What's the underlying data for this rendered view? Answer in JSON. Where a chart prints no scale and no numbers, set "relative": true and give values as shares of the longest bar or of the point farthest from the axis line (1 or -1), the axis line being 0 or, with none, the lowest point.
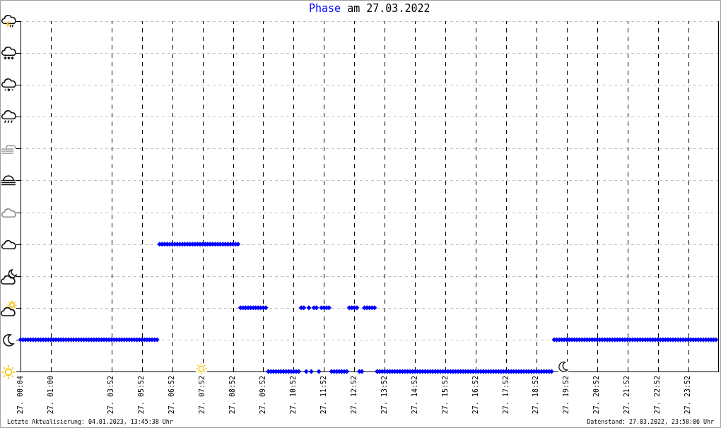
{
  "chart_data": {
    "type": "scatter",
    "title": "am 27.03.2022",
    "categories": [
      "27. 00:04",
      null,
      null,
      null,
      null,
      null,
      null,
      null,
      null,
      null,
      null,
      null,
      "27. 01:00",
      null,
      null,
      null,
      null,
      null,
      null,
      null,
      null,
      null,
      null,
      null,
      null,
      null,
      null,
      null,
      null,
      null,
      null,
      null,
      null,
      null,
      null,
      null,
      "27. 03:52",
      null,
      null,
      null,
      null,
      null,
      null,
      null,
      null,
      null,
      null,
      null,
      "27. 05:52",
      null,
      null,
      null,
      null,
      null,
      null,
      null,
      null,
      null,
      null,
      null,
      "27. 06:52",
      null,
      null,
      null,
      null,
      null,
      null,
      null,
      null,
      null,
      null,
      null,
      "27. 07:52",
      null,
      null,
      null,
      null,
      null,
      null,
      null,
      null,
      null,
      null,
      null,
      "27. 08:52",
      null,
      null,
      null,
      null,
      null,
      null,
      null,
      null,
      null,
      null,
      null,
      "27. 09:52",
      null,
      null,
      null,
      null,
      null,
      null,
      null,
      null,
      null,
      null,
      null,
      "27. 10:52",
      null,
      null,
      null,
      null,
      null,
      null,
      null,
      null,
      null,
      null,
      null,
      "27. 11:52",
      null,
      null,
      null,
      null,
      null,
      null,
      null,
      null,
      null,
      null,
      null,
      "27. 12:52",
      null,
      null,
      null,
      null,
      null,
      null,
      null,
      null,
      null,
      null,
      null,
      "27. 13:52",
      null,
      null,
      null,
      null,
      null,
      null,
      null,
      null,
      null,
      null,
      null,
      "27. 14:52",
      null,
      null,
      null,
      null,
      null,
      null,
      null,
      null,
      null,
      null,
      null,
      "27. 15:52",
      null,
      null,
      null,
      null,
      null,
      null,
      null,
      null,
      null,
      null,
      null,
      "27. 16:52",
      null,
      null,
      null,
      null,
      null,
      null,
      null,
      null,
      null,
      null,
      null,
      "27. 17:52",
      null,
      null,
      null,
      null,
      null,
      null,
      null,
      null,
      null,
      null,
      null,
      "27. 18:52",
      null,
      null,
      null,
      null,
      null,
      null,
      null,
      null,
      null,
      null,
      null,
      "27. 19:52",
      null,
      null,
      null,
      null,
      null,
      null,
      null,
      null,
      null,
      null,
      null,
      "27. 20:52",
      null,
      null,
      null,
      null,
      null,
      null,
      null,
      null,
      null,
      null,
      null,
      "27. 21:52",
      null,
      null,
      null,
      null,
      null,
      null,
      null,
      null,
      null,
      null,
      null,
      "27. 22:52",
      null,
      null,
      null,
      null,
      null,
      null,
      null,
      null,
      null,
      null,
      null,
      "27. 23:52",
      null,
      null,
      null,
      null,
      null,
      null,
      null,
      null,
      null,
      null,
      null
    ],
    "series": [
      {
        "name": "Phase",
        "color": "#0000ff",
        "values": [
          0.25,
          0.25,
          0.25,
          0.25,
          0.25,
          0.25,
          0.25,
          0.25,
          0.25,
          0.25,
          0.25,
          0.25,
          0.25,
          0.25,
          0.25,
          0.25,
          0.25,
          0.25,
          0.25,
          0.25,
          0.25,
          0.25,
          0.25,
          0.25,
          0.25,
          0.25,
          0.25,
          0.25,
          0.25,
          0.25,
          0.25,
          0.25,
          0.25,
          0.25,
          0.25,
          0.25,
          0.25,
          0.25,
          0.25,
          0.25,
          0.25,
          0.25,
          0.25,
          0.25,
          0.25,
          0.25,
          0.25,
          0.25,
          0.25,
          0.25,
          0.25,
          0.25,
          0.25,
          0.25,
          0.25,
          1,
          1,
          1,
          1,
          1,
          1,
          1,
          1,
          1,
          1,
          1,
          1,
          1,
          1,
          1,
          1,
          1,
          1,
          1,
          1,
          1,
          1,
          1,
          1,
          1,
          1,
          1,
          1,
          1,
          1,
          1,
          1,
          0.5,
          0.5,
          0.5,
          0.5,
          0.5,
          0.5,
          0.5,
          0.5,
          0.5,
          0.5,
          0.5,
          0,
          0,
          0,
          0,
          0,
          0,
          0,
          0,
          0,
          0,
          0,
          0,
          0,
          0.5,
          0.5,
          0,
          0.5,
          0,
          0.5,
          0.5,
          0,
          0.5,
          0.5,
          0.5,
          0.5,
          0,
          0,
          0,
          0,
          0,
          0,
          0,
          0.5,
          0.5,
          0.5,
          0.5,
          0,
          0,
          0.5,
          0.5,
          0.5,
          0.5,
          0.5,
          0,
          0,
          0,
          0,
          0,
          0,
          0,
          0,
          0,
          0,
          0,
          0,
          0,
          0,
          0,
          0,
          0,
          0,
          0,
          0,
          0,
          0,
          0,
          0,
          0,
          0,
          0,
          0,
          0,
          0,
          0,
          0,
          0,
          0,
          0,
          0,
          0,
          0,
          0,
          0,
          0,
          0,
          0,
          0,
          0,
          0,
          0,
          0,
          0,
          0,
          0,
          0,
          0,
          0,
          0,
          0,
          0,
          0,
          0,
          0,
          0,
          0,
          0,
          0,
          0,
          0,
          0,
          0,
          0,
          0,
          0.25,
          0.25,
          0.25,
          0.25,
          0.25,
          0.25,
          0.25,
          0.25,
          0.25,
          0.25,
          0.25,
          0.25,
          0.25,
          0.25,
          0.25,
          0.25,
          0.25,
          0.25,
          0.25,
          0.25,
          0.25,
          0.25,
          0.25,
          0.25,
          0.25,
          0.25,
          0.25,
          0.25,
          0.25,
          0.25,
          0.25,
          0.25,
          0.25,
          0.25,
          0.25,
          0.25,
          0.25,
          0.25,
          0.25,
          0.25,
          0.25,
          0.25,
          0.25,
          0.25,
          0.25,
          0.25,
          0.25,
          0.25,
          0.25,
          0.25,
          0.25,
          0.25,
          0.25,
          0.25,
          0.25,
          0.25,
          0.25,
          0.25,
          0.25,
          0.25,
          0.25,
          0.25,
          0.25,
          0.25,
          0.25
        ]
      }
    ],
    "relative": true,
    "marker": "diamond",
    "grid": true,
    "legend": "top",
    "annotations": [
      "Letzte Aktualisierung: 04.01.2023, 13:45:38 Uhr",
      "Datenstand: 27.03.2022, 23:58:06 Uhr"
    ]
  }
}
